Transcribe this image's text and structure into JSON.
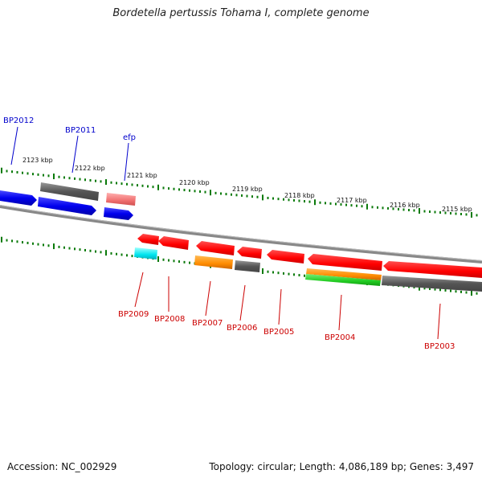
{
  "title": "Bordetella pertussis Tohama I, complete genome",
  "accession": "Accession: NC_002929",
  "topology": "Topology: circular; Length: 4,086,189 bp; Genes: 3,497",
  "ruler": {
    "labels": [
      "2123 kbp",
      "2122 kbp",
      "2121 kbp",
      "2120 kbp",
      "2119 kbp",
      "2118 kbp",
      "2117 kbp",
      "2116 kbp",
      "2115 kbp"
    ]
  },
  "genes_forward": [
    {
      "name": "BP2012",
      "color": "#0000ee"
    },
    {
      "name": "BP2011",
      "color": "#0000ee"
    },
    {
      "name": "efp",
      "color": "#0000ee"
    }
  ],
  "genes_reverse": [
    {
      "name": "BP2009",
      "color": "#ff0000"
    },
    {
      "name": "BP2008",
      "color": "#ff0000"
    },
    {
      "name": "BP2007",
      "color": "#ff0000"
    },
    {
      "name": "BP2006",
      "color": "#ff0000"
    },
    {
      "name": "BP2005",
      "color": "#ff0000"
    },
    {
      "name": "BP2004",
      "color": "#ff0000"
    },
    {
      "name": "BP2003",
      "color": "#ff0000"
    }
  ],
  "colors": {
    "forward_cds": "#0000ee",
    "reverse_cds": "#ff0000",
    "gray_track": "#666666",
    "cog_pink": "#f08080",
    "cog_cyan": "#00e5ee",
    "cog_orange": "#ff8c00",
    "cog_green": "#22cc22",
    "tick": "#0a7a0a",
    "backbone": "#888888"
  }
}
